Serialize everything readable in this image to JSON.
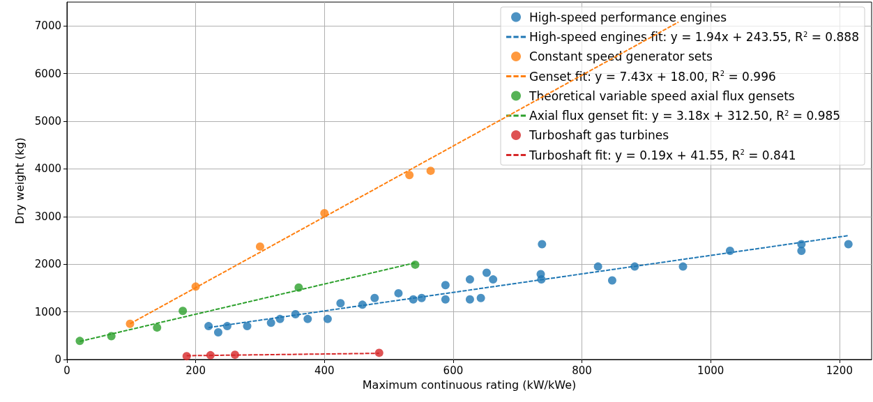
{
  "chart_data": {
    "type": "scatter",
    "xlabel": "Maximum continuous rating (kW/kWe)",
    "ylabel": "Dry weight (kg)",
    "xlim": [
      0,
      1250
    ],
    "xticks": [
      0,
      200,
      400,
      600,
      800,
      1000,
      1200
    ],
    "ylim": [
      0,
      7500
    ],
    "yticks": [
      0,
      1000,
      2000,
      3000,
      4000,
      5000,
      6000,
      7000
    ],
    "grid": true,
    "legend": "top right",
    "marker": "circle",
    "series": [
      {
        "name": "High-speed performance engines",
        "type": "scatter",
        "color": "#1f77b4",
        "x": [
          220,
          235,
          249,
          280,
          317,
          331,
          355,
          374,
          405,
          425,
          459,
          478,
          515,
          538,
          551,
          588,
          588,
          626,
          626,
          643,
          652,
          662,
          738,
          736,
          737,
          825,
          847,
          882,
          957,
          1030,
          1141,
          1141,
          1214
        ],
        "values": [
          700,
          570,
          700,
          700,
          770,
          850,
          950,
          850,
          850,
          1180,
          1150,
          1290,
          1390,
          1260,
          1290,
          1560,
          1260,
          1680,
          1260,
          1290,
          1820,
          1680,
          2420,
          1790,
          1680,
          1950,
          1660,
          1950,
          1950,
          2280,
          2420,
          2280,
          2420
        ]
      },
      {
        "name": "High-speed engines fit: y = 1.94x + 243.55, R$^{2}$ = 0.888",
        "type": "line",
        "line_style": "dashed",
        "marker": "none",
        "color": "#1f77b4",
        "x": [
          220,
          1214
        ],
        "values": [
          670,
          2600
        ]
      },
      {
        "name": "Constant speed generator sets",
        "type": "scatter",
        "color": "#ff7f0e",
        "x": [
          98,
          200,
          300,
          400,
          532,
          565
        ],
        "values": [
          750,
          1530,
          2370,
          3070,
          3870,
          3960
        ]
      },
      {
        "name": "Genset fit: y = 7.43x + 18.00, R$^{2}$ = 0.996",
        "type": "line",
        "line_style": "dashed",
        "marker": "none",
        "color": "#ff7f0e",
        "x": [
          98,
          950
        ],
        "values": [
          750,
          7080
        ]
      },
      {
        "name": "Theoretical variable speed axial flux gensets",
        "type": "scatter",
        "color": "#2ca02c",
        "x": [
          20,
          69,
          140,
          180,
          360,
          541
        ],
        "values": [
          390,
          490,
          670,
          1020,
          1510,
          1990
        ]
      },
      {
        "name": "Axial flux genset fit: y = 3.18x + 312.50, R$^{2}$ = 0.985",
        "type": "line",
        "line_style": "dashed",
        "marker": "none",
        "color": "#2ca02c",
        "x": [
          20,
          541
        ],
        "values": [
          380,
          2030
        ]
      },
      {
        "name": "Turboshaft gas turbines",
        "type": "scatter",
        "color": "#d62728",
        "x": [
          186,
          223,
          261,
          485
        ],
        "values": [
          70,
          90,
          100,
          140
        ]
      },
      {
        "name": "Turboshaft fit: y = 0.19x + 41.55, R$^{2}$ = 0.841",
        "type": "line",
        "line_style": "dashed",
        "marker": "none",
        "color": "#d62728",
        "x": [
          186,
          485
        ],
        "values": [
          80,
          130
        ]
      }
    ]
  }
}
